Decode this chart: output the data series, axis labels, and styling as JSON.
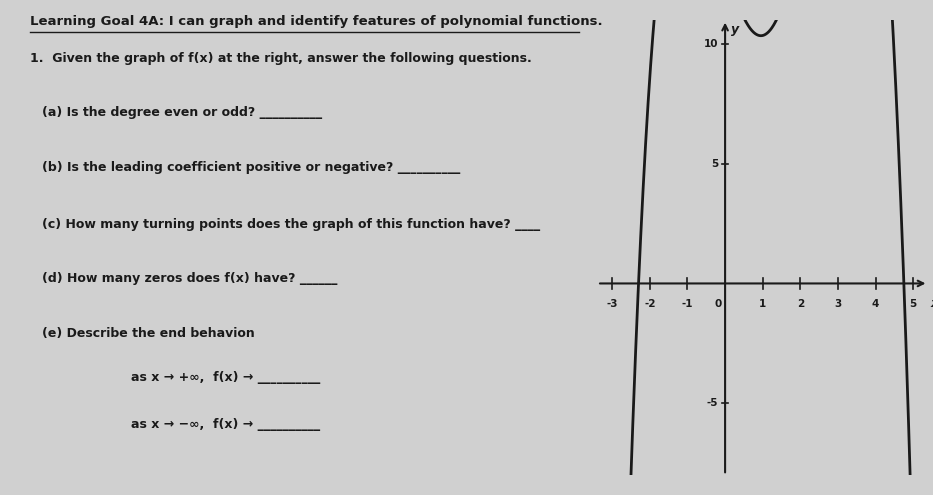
{
  "title_line1": "Learning Goal 4A: I can graph and identify features of polynomial functions.",
  "question_intro": "1.  Given the graph of f(x) at the right, answer the following questions.",
  "qa": "(a) Is the degree even or odd? __________",
  "qb": "(b) Is the leading coefficient positive or negative? __________",
  "qc": "(c) How many turning points does the graph of this function have? ____",
  "qd": "(d) How many zeros does f(x) have? ______",
  "qe_title": "(e) Describe the end behavion",
  "qe1": "as x → +∞,  f(x) → __________",
  "qe2": "as x → −∞,  f(x) → __________",
  "bg_color": "#d0d0d0",
  "text_color": "#1a1a1a",
  "graph_xlim": [
    -3.4,
    5.4
  ],
  "graph_ylim": [
    -8,
    11
  ],
  "xticks": [
    -3,
    -2,
    -1,
    1,
    2,
    3,
    4,
    5
  ],
  "yticks": [
    -5,
    5,
    10
  ],
  "xlabel": "x",
  "ylabel": "y",
  "curve_color": "#1a1a1a",
  "curve_linewidth": 2.0,
  "axis_color": "#1a1a1a",
  "title_fontsize": 9.5,
  "body_fontsize": 9.0
}
